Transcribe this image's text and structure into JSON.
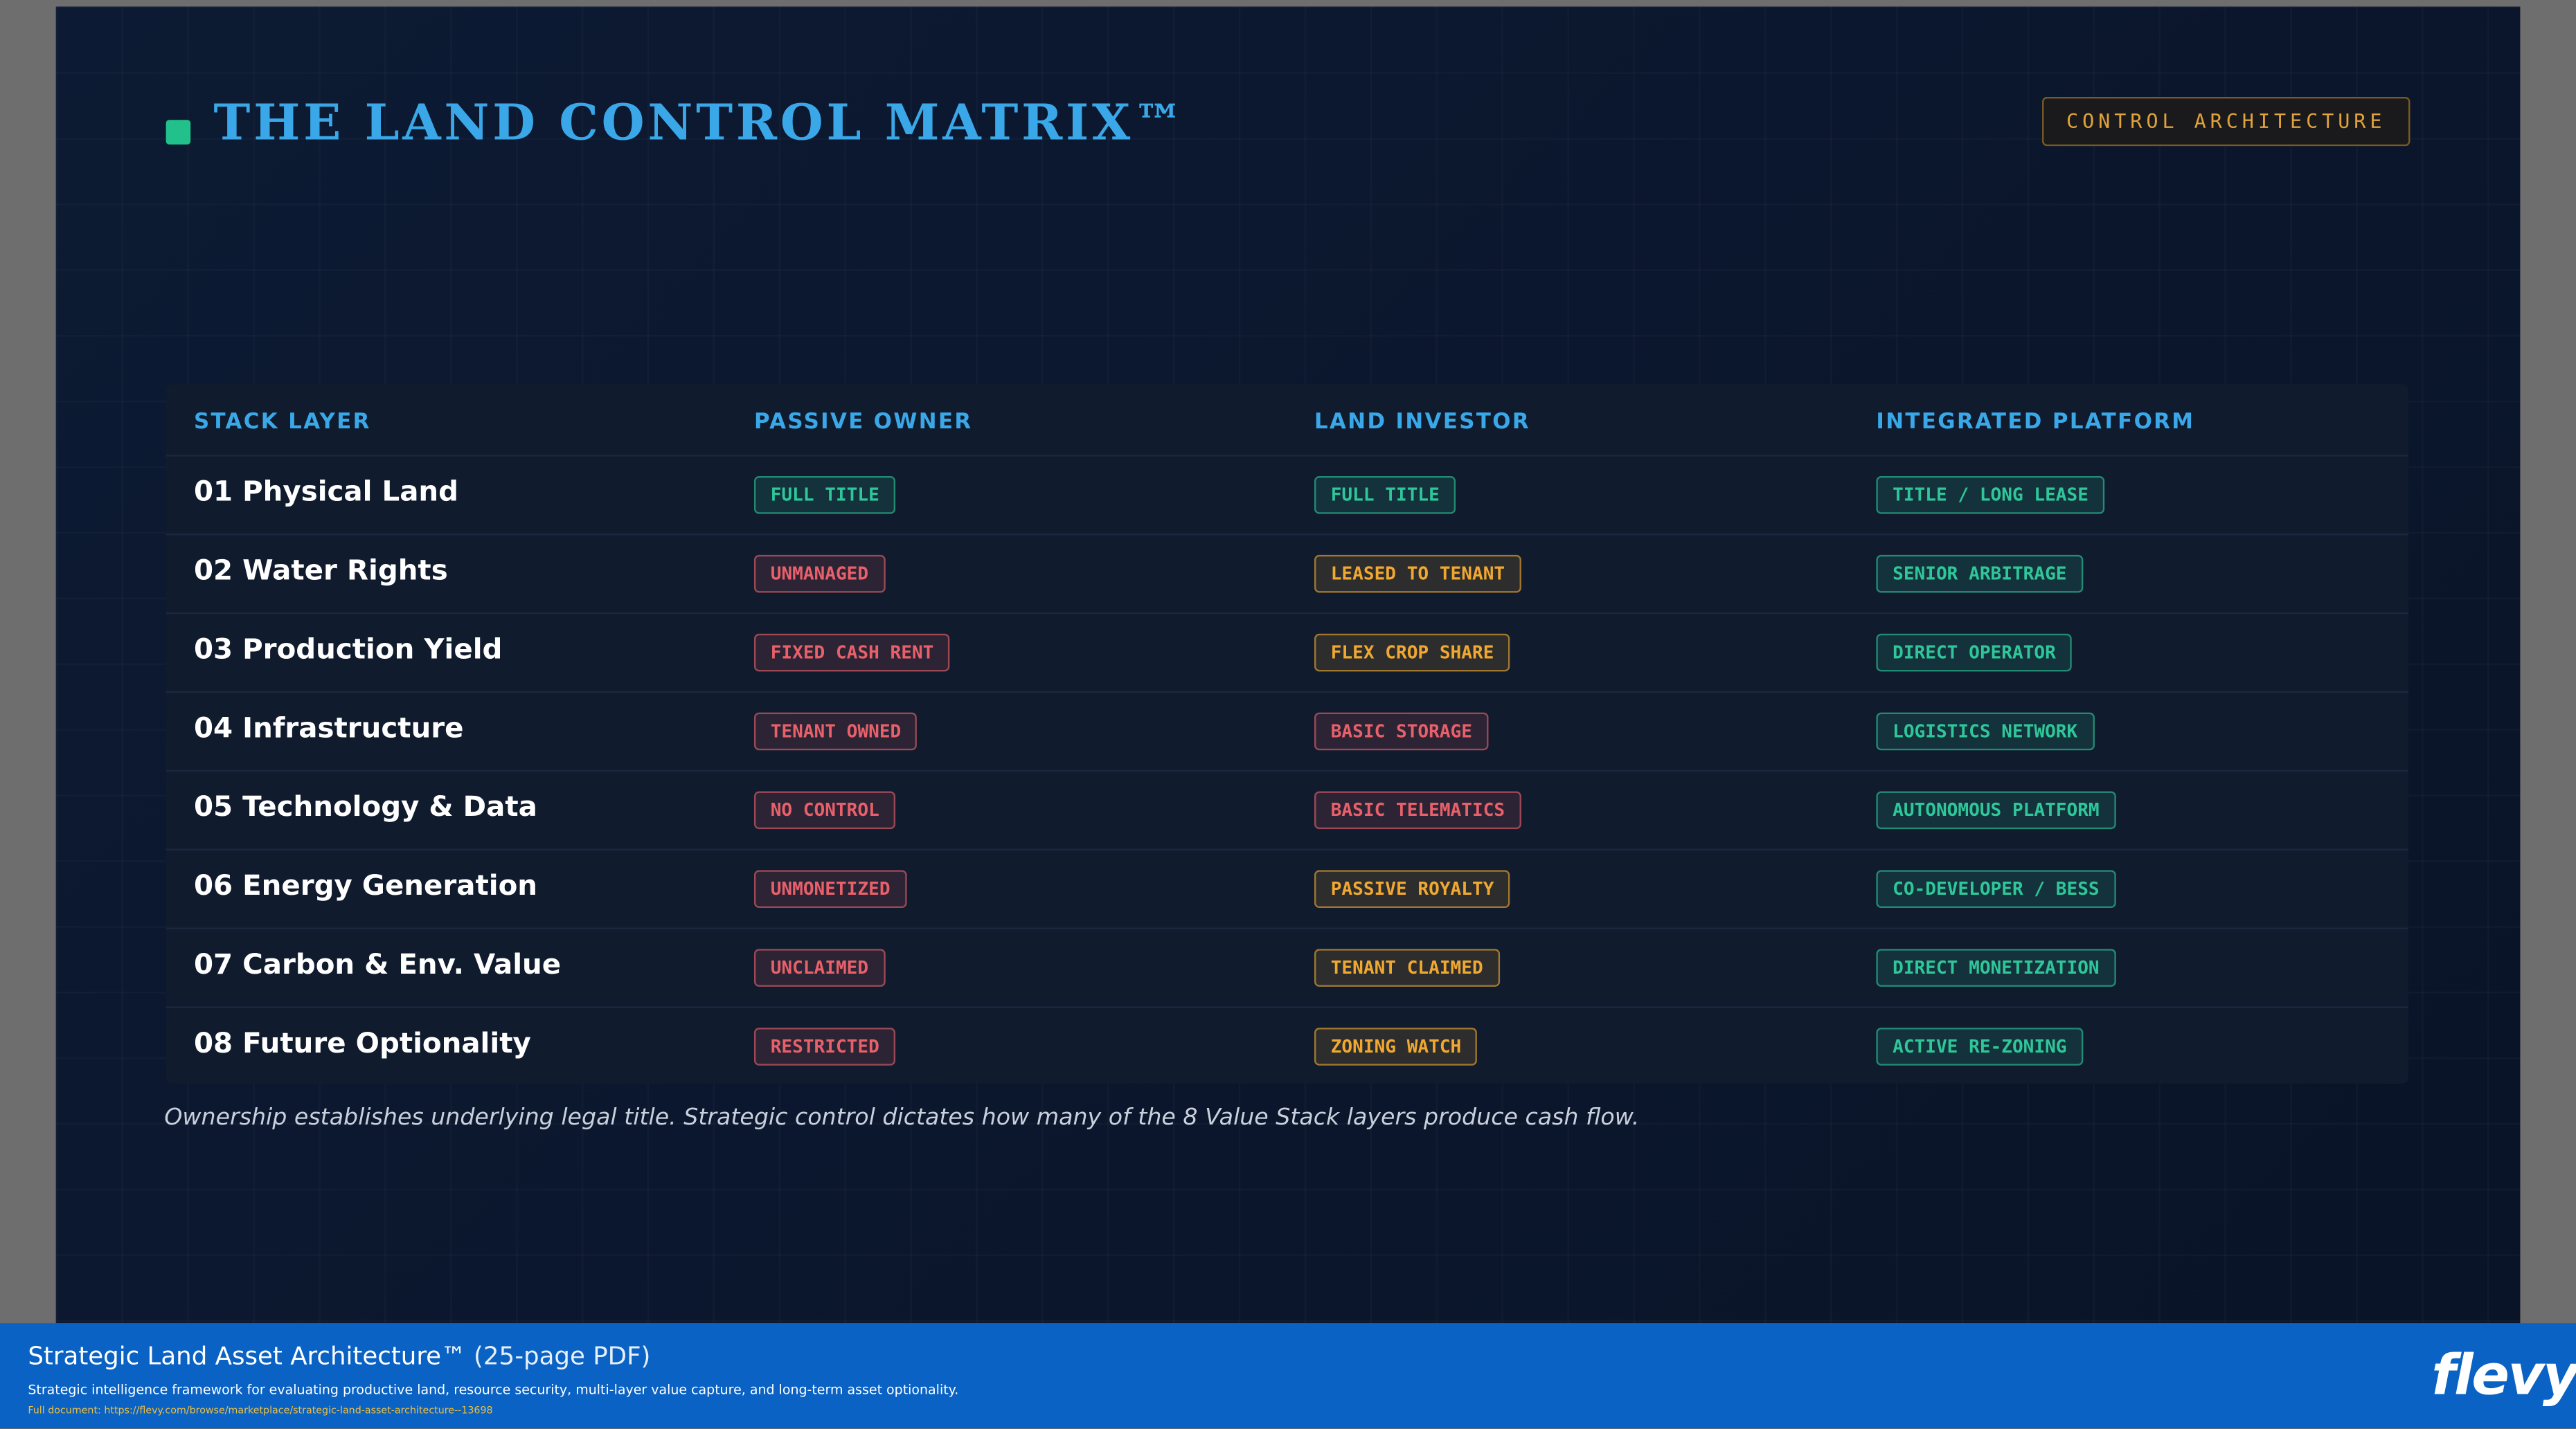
{
  "header": {
    "title": "THE LAND CONTROL MATRIX™",
    "badge": "CONTROL ARCHITECTURE"
  },
  "table": {
    "columns": [
      "STACK LAYER",
      "PASSIVE OWNER",
      "LAND INVESTOR",
      "INTEGRATED PLATFORM"
    ],
    "rows": [
      {
        "layer": "01 Physical Land",
        "cells": [
          {
            "text": "FULL TITLE",
            "color": "#2fc79a"
          },
          {
            "text": "FULL TITLE",
            "color": "#2fc79a"
          },
          {
            "text": "TITLE / LONG LEASE",
            "color": "#2fc79a"
          }
        ]
      },
      {
        "layer": "02 Water Rights",
        "cells": [
          {
            "text": "UNMANAGED",
            "color": "#e8606a"
          },
          {
            "text": "LEASED TO TENANT",
            "color": "#f0a830"
          },
          {
            "text": "SENIOR ARBITRAGE",
            "color": "#2fc79a"
          }
        ]
      },
      {
        "layer": "03 Production Yield",
        "cells": [
          {
            "text": "FIXED CASH RENT",
            "color": "#e8606a"
          },
          {
            "text": "FLEX CROP SHARE",
            "color": "#f0a830"
          },
          {
            "text": "DIRECT OPERATOR",
            "color": "#2fc79a"
          }
        ]
      },
      {
        "layer": "04 Infrastructure",
        "cells": [
          {
            "text": "TENANT OWNED",
            "color": "#e8606a"
          },
          {
            "text": "BASIC STORAGE",
            "color": "#e8606a"
          },
          {
            "text": "LOGISTICS NETWORK",
            "color": "#2fc79a"
          }
        ]
      },
      {
        "layer": "05 Technology & Data",
        "cells": [
          {
            "text": "NO CONTROL",
            "color": "#e8606a"
          },
          {
            "text": "BASIC TELEMATICS",
            "color": "#e8606a"
          },
          {
            "text": "AUTONOMOUS PLATFORM",
            "color": "#2fc79a"
          }
        ]
      },
      {
        "layer": "06 Energy Generation",
        "cells": [
          {
            "text": "UNMONETIZED",
            "color": "#e8606a"
          },
          {
            "text": "PASSIVE ROYALTY",
            "color": "#f0a830"
          },
          {
            "text": "CO-DEVELOPER / BESS",
            "color": "#2fc79a"
          }
        ]
      },
      {
        "layer": "07 Carbon & Env. Value",
        "cells": [
          {
            "text": "UNCLAIMED",
            "color": "#e8606a"
          },
          {
            "text": "TENANT CLAIMED",
            "color": "#f0a830"
          },
          {
            "text": "DIRECT MONETIZATION",
            "color": "#2fc79a"
          }
        ]
      },
      {
        "layer": "08 Future Optionality",
        "cells": [
          {
            "text": "RESTRICTED",
            "color": "#e8606a"
          },
          {
            "text": "ZONING WATCH",
            "color": "#f0a830"
          },
          {
            "text": "ACTIVE RE-ZONING",
            "color": "#2fc79a"
          }
        ]
      }
    ]
  },
  "footnote": "Ownership establishes underlying legal title. Strategic control dictates how many of the 8 Value Stack layers produce cash flow.",
  "footer": {
    "title": "Strategic Land Asset Architecture™",
    "pages": "(25-page PDF)",
    "description": "Strategic intelligence framework for evaluating productive land, resource security, multi-layer value capture, and long-term asset optionality.",
    "link": "Full document: https://flevy.com/browse/marketplace/strategic-land-asset-architecture--13698",
    "logo": "flevy"
  }
}
